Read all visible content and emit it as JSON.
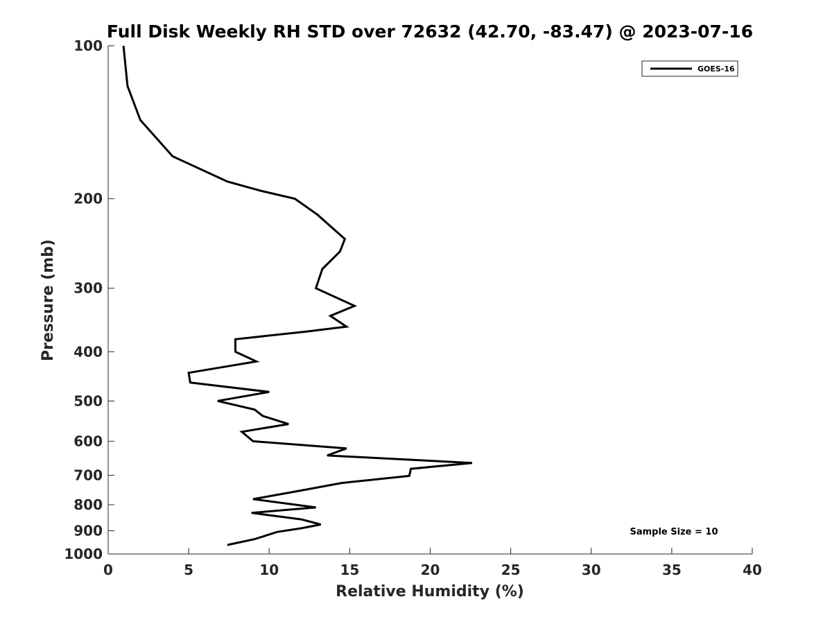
{
  "chart_data": {
    "type": "line",
    "title": "Full Disk Weekly RH STD over 72632 (42.70, -83.47) @ 2023-07-16",
    "xlabel": "Relative Humidity (%)",
    "ylabel": "Pressure (mb)",
    "xlim": [
      0,
      40
    ],
    "ylim": [
      100,
      1000
    ],
    "y_scale": "log",
    "y_reversed": true,
    "x_ticks": [
      0,
      5,
      10,
      15,
      20,
      25,
      30,
      35,
      40
    ],
    "y_ticks": [
      100,
      200,
      300,
      400,
      500,
      600,
      700,
      800,
      900,
      1000
    ],
    "grid": false,
    "legend": {
      "position": "top-right",
      "entries": [
        "GOES-16"
      ]
    },
    "annotation": "Sample Size = 10",
    "series": [
      {
        "name": "GOES-16",
        "color": "#000000",
        "points": [
          [
            0.95,
            100
          ],
          [
            1.2,
            120
          ],
          [
            2.0,
            140
          ],
          [
            4.0,
            165
          ],
          [
            7.4,
            185
          ],
          [
            9.5,
            193
          ],
          [
            11.6,
            200
          ],
          [
            13.0,
            215
          ],
          [
            14.7,
            240
          ],
          [
            14.4,
            254
          ],
          [
            13.3,
            275
          ],
          [
            12.9,
            300
          ],
          [
            15.3,
            325
          ],
          [
            13.8,
            340
          ],
          [
            14.8,
            357
          ],
          [
            12.3,
            365
          ],
          [
            7.9,
            378
          ],
          [
            7.9,
            400
          ],
          [
            9.2,
            418
          ],
          [
            5.0,
            440
          ],
          [
            5.1,
            460
          ],
          [
            10.0,
            480
          ],
          [
            6.8,
            500
          ],
          [
            9.1,
            520
          ],
          [
            9.6,
            535
          ],
          [
            11.2,
            555
          ],
          [
            8.3,
            575
          ],
          [
            9.0,
            600
          ],
          [
            14.8,
            620
          ],
          [
            13.6,
            640
          ],
          [
            22.6,
            662
          ],
          [
            18.8,
            680
          ],
          [
            18.7,
            702
          ],
          [
            14.5,
            725
          ],
          [
            11.5,
            755
          ],
          [
            9.0,
            780
          ],
          [
            12.9,
            810
          ],
          [
            8.9,
            830
          ],
          [
            12.0,
            855
          ],
          [
            13.2,
            875
          ],
          [
            12.0,
            890
          ],
          [
            10.5,
            905
          ],
          [
            9.1,
            935
          ],
          [
            7.4,
            960
          ]
        ]
      }
    ]
  }
}
